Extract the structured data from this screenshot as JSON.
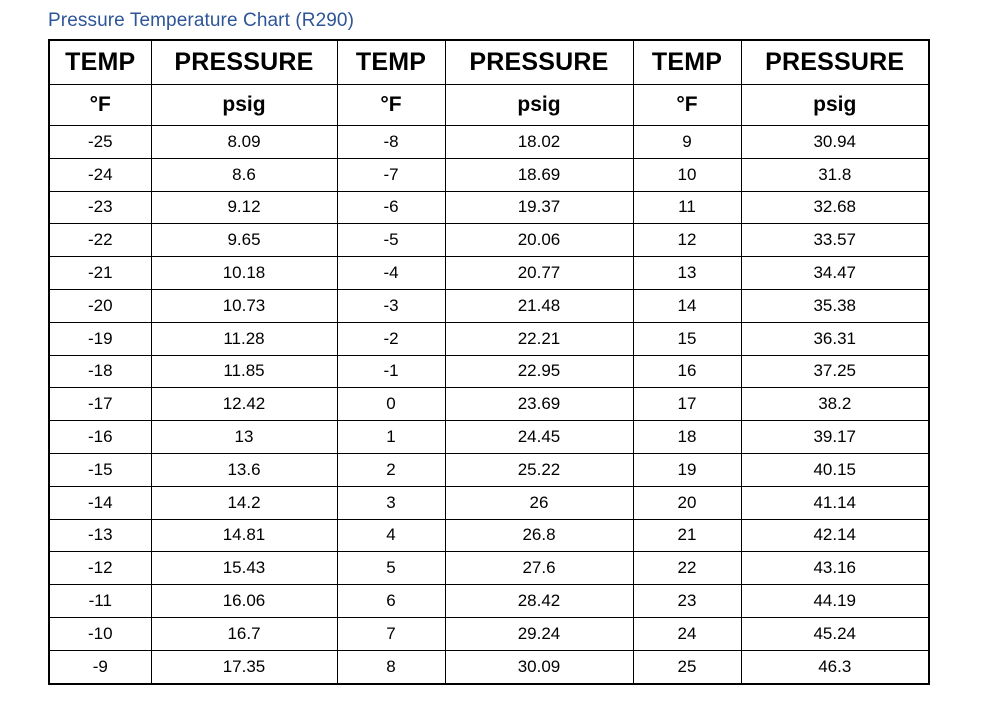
{
  "title": "Pressure Temperature Chart (R290)",
  "table": {
    "headers": [
      "TEMP",
      "PRESSURE",
      "TEMP",
      "PRESSURE",
      "TEMP",
      "PRESSURE"
    ],
    "units": [
      "°F",
      "psig",
      "°F",
      "psig",
      "°F",
      "psig"
    ],
    "rows": [
      [
        "-25",
        "8.09",
        "-8",
        "18.02",
        "9",
        "30.94"
      ],
      [
        "-24",
        "8.6",
        "-7",
        "18.69",
        "10",
        "31.8"
      ],
      [
        "-23",
        "9.12",
        "-6",
        "19.37",
        "11",
        "32.68"
      ],
      [
        "-22",
        "9.65",
        "-5",
        "20.06",
        "12",
        "33.57"
      ],
      [
        "-21",
        "10.18",
        "-4",
        "20.77",
        "13",
        "34.47"
      ],
      [
        "-20",
        "10.73",
        "-3",
        "21.48",
        "14",
        "35.38"
      ],
      [
        "-19",
        "11.28",
        "-2",
        "22.21",
        "15",
        "36.31"
      ],
      [
        "-18",
        "11.85",
        "-1",
        "22.95",
        "16",
        "37.25"
      ],
      [
        "-17",
        "12.42",
        "0",
        "23.69",
        "17",
        "38.2"
      ],
      [
        "-16",
        "13",
        "1",
        "24.45",
        "18",
        "39.17"
      ],
      [
        "-15",
        "13.6",
        "2",
        "25.22",
        "19",
        "40.15"
      ],
      [
        "-14",
        "14.2",
        "3",
        "26",
        "20",
        "41.14"
      ],
      [
        "-13",
        "14.81",
        "4",
        "26.8",
        "21",
        "42.14"
      ],
      [
        "-12",
        "15.43",
        "5",
        "27.6",
        "22",
        "43.16"
      ],
      [
        "-11",
        "16.06",
        "6",
        "28.42",
        "23",
        "44.19"
      ],
      [
        "-10",
        "16.7",
        "7",
        "29.24",
        "24",
        "45.24"
      ],
      [
        "-9",
        "17.35",
        "8",
        "30.09",
        "25",
        "46.3"
      ]
    ]
  },
  "colors": {
    "title": "#2e5597",
    "border": "#000000",
    "text": "#000000",
    "background": "#ffffff"
  }
}
